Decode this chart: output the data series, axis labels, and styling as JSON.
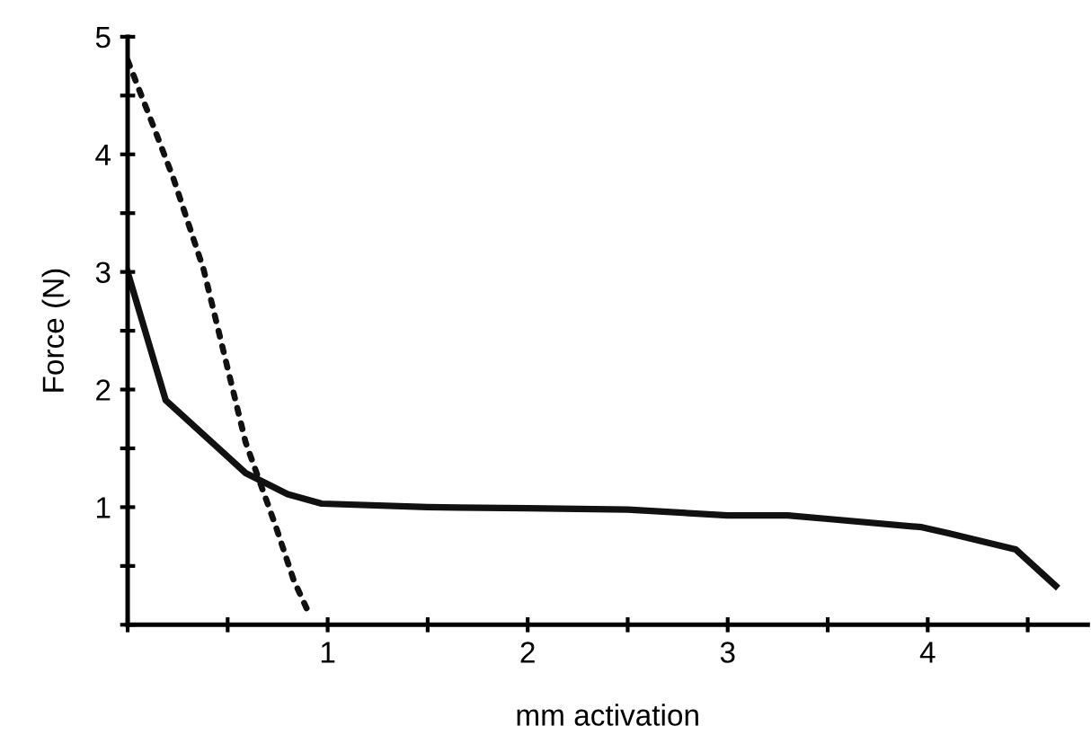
{
  "chart_data": {
    "type": "line",
    "xlabel": "mm activation",
    "ylabel": "Force (N)",
    "xlim": [
      0,
      4.8
    ],
    "ylim": [
      0,
      5
    ],
    "xticks": [
      {
        "value": 0,
        "label": null
      },
      {
        "value": 0.5,
        "label": null
      },
      1,
      {
        "value": 1.5,
        "label": null
      },
      2,
      {
        "value": 2.5,
        "label": null
      },
      3,
      {
        "value": 3.5,
        "label": null
      },
      4,
      {
        "value": 4.5,
        "label": null
      }
    ],
    "yticks": [
      {
        "value": 0,
        "label": null
      },
      {
        "value": 0.5,
        "label": null
      },
      1,
      {
        "value": 1.5,
        "label": null
      },
      2,
      {
        "value": 2.5,
        "label": null
      },
      3,
      {
        "value": 3.5,
        "label": null
      },
      4,
      {
        "value": 4.5,
        "label": null
      },
      5
    ],
    "grid": false,
    "legend": false,
    "marker": "none",
    "series": [
      {
        "color": "#111111",
        "line_style": "solid",
        "x": [
          0,
          0.19,
          0.59,
          0.8,
          0.97,
          1.5,
          2,
          2.5,
          3,
          3.3,
          3.5,
          3.97,
          4.1,
          4.44,
          4.64
        ],
        "values": [
          3.0,
          1.91,
          1.29,
          1.11,
          1.03,
          1.0,
          0.99,
          0.98,
          0.93,
          0.93,
          0.9,
          0.83,
          0.78,
          0.64,
          0.33
        ]
      },
      {
        "color": "#111111",
        "line_style": "dotted",
        "x": [
          0,
          0.14,
          0.23,
          0.38,
          0.59,
          0.74,
          0.83,
          0.9
        ],
        "values": [
          4.8,
          4.19,
          3.79,
          3.02,
          1.55,
          0.84,
          0.38,
          0.12
        ]
      }
    ]
  }
}
